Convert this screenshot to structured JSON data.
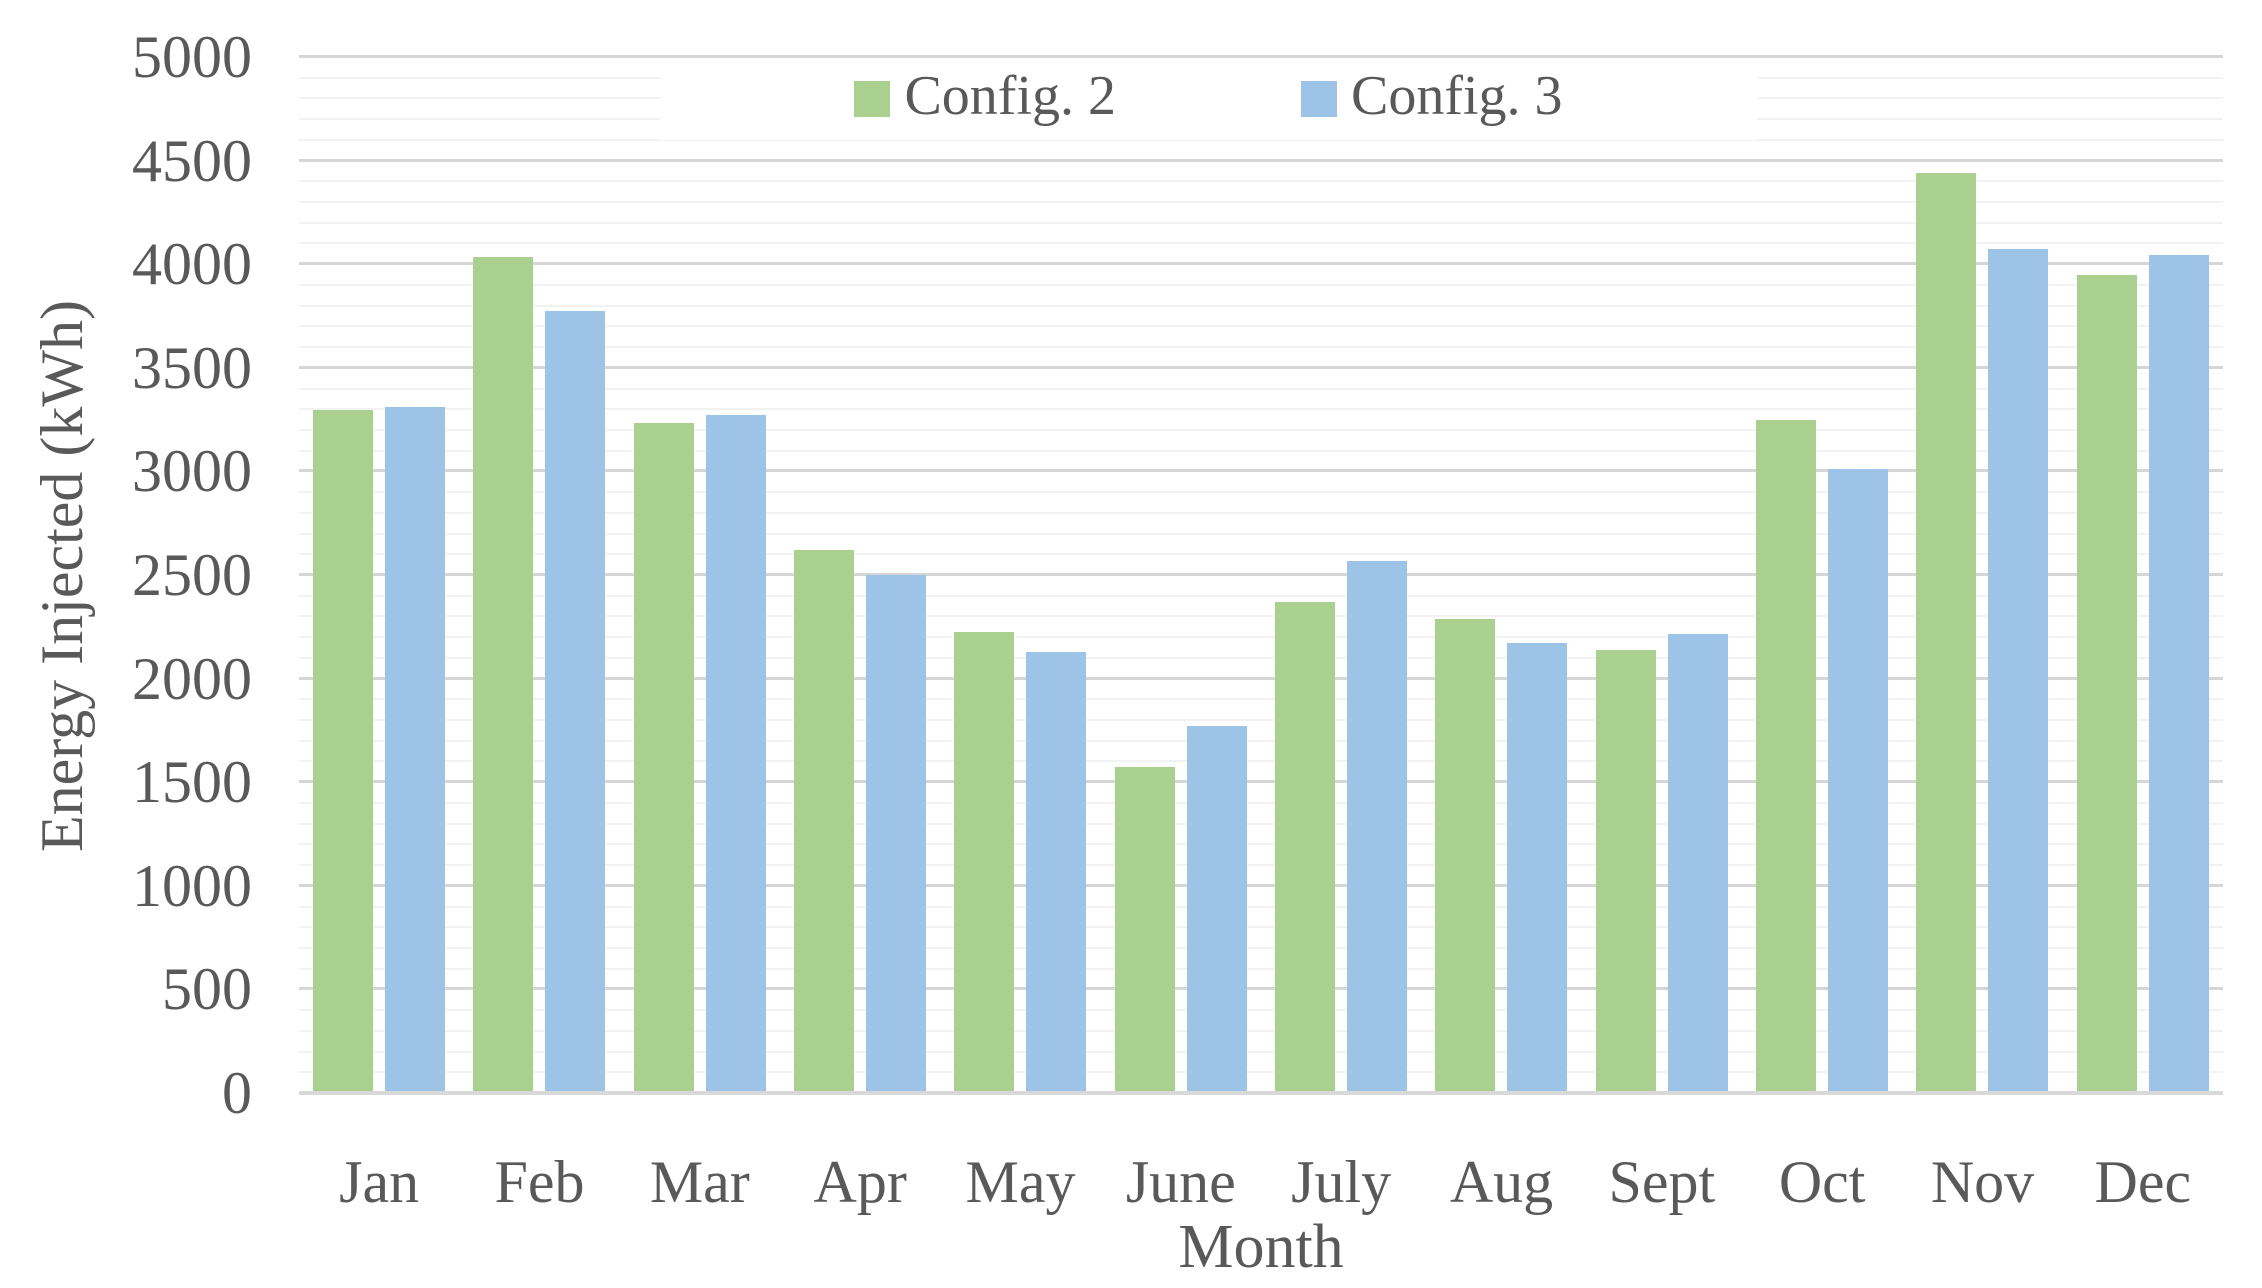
{
  "chart_data": {
    "type": "bar",
    "title": "",
    "categories": [
      "Jan",
      "Feb",
      "Mar",
      "Apr",
      "May",
      "June",
      "July",
      "Aug",
      "Sept",
      "Oct",
      "Nov",
      "Dec"
    ],
    "series": [
      {
        "name": "Config. 2",
        "color": "#A9D08E",
        "values": [
          3295,
          4035,
          3235,
          2620,
          2225,
          1575,
          2370,
          2290,
          2140,
          3250,
          4440,
          3950
        ]
      },
      {
        "name": "Config. 3",
        "color": "#9DC3E6",
        "values": [
          3310,
          3775,
          3270,
          2500,
          2130,
          1770,
          2570,
          2170,
          2215,
          3010,
          4075,
          4045
        ]
      }
    ],
    "xlabel": "Month",
    "ylabel": "Energy Injected (kWh)",
    "ylim": [
      0,
      5000
    ],
    "yticks": [
      0,
      500,
      1000,
      1500,
      2000,
      2500,
      3000,
      3500,
      4000,
      4500,
      5000
    ],
    "minor_grid_step": 100,
    "major_grid_step": 500,
    "grid": true,
    "legend_position": "top-center",
    "axis_text_color": "#595959",
    "major_gridline_color": "#d6d6d6",
    "minor_gridline_color": "#f2f2f2",
    "axis_line_color": "#d9d9d9",
    "background_color": "#ffffff"
  }
}
